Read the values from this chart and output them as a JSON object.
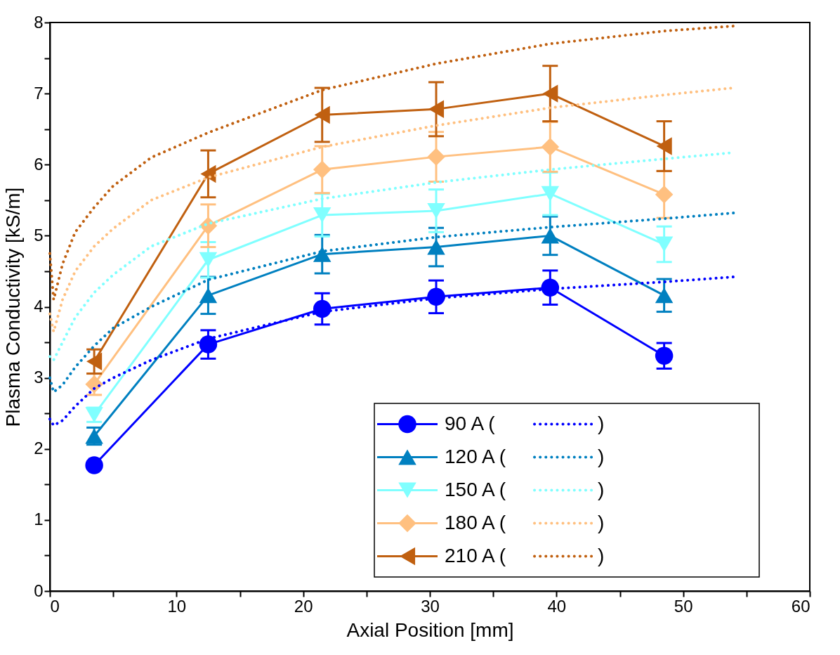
{
  "chart_data": {
    "type": "line",
    "xlabel": "Axial Position [mm]",
    "ylabel": "Plasma Conductivity [kS/m]",
    "xlim": [
      0,
      60
    ],
    "ylim": [
      0,
      8
    ],
    "xticks": [
      0,
      {
        "value": 5,
        "label": null
      },
      10,
      {
        "value": 15,
        "label": null
      },
      20,
      {
        "value": 25,
        "label": null
      },
      30,
      {
        "value": 35,
        "label": null
      },
      40,
      {
        "value": 45,
        "label": null
      },
      50,
      {
        "value": 55,
        "label": null
      },
      60
    ],
    "yticks": [
      0,
      {
        "value": 0.5,
        "label": null
      },
      1,
      {
        "value": 1.5,
        "label": null
      },
      2,
      {
        "value": 2.5,
        "label": null
      },
      3,
      {
        "value": 3.5,
        "label": null
      },
      4,
      {
        "value": 4.5,
        "label": null
      },
      5,
      {
        "value": 5.5,
        "label": null
      },
      6,
      {
        "value": 6.5,
        "label": null
      },
      7,
      {
        "value": 7.5,
        "label": null
      },
      8
    ],
    "grid": false,
    "legend": "bottom right",
    "series": [
      {
        "name": "90 A (",
        "color": "#0000ff",
        "marker": "circle",
        "line_style": "solid",
        "x": [
          3.5,
          12.5,
          21.5,
          30.5,
          39.5,
          48.5
        ],
        "values": [
          1.77,
          3.47,
          3.97,
          4.14,
          4.27,
          3.31
        ],
        "errors": [
          null,
          0.2,
          0.22,
          0.23,
          0.24,
          0.18
        ]
      },
      {
        "name": "120 A (",
        "color": "#0080c0",
        "marker": "triangle",
        "line_style": "solid",
        "x": [
          3.5,
          12.5,
          21.5,
          30.5,
          39.5,
          48.5
        ],
        "values": [
          2.18,
          4.16,
          4.74,
          4.84,
          5.0,
          4.16
        ],
        "errors": [
          0.12,
          0.26,
          0.27,
          0.27,
          0.27,
          0.23
        ]
      },
      {
        "name": "150 A (",
        "color": "#80ffff",
        "marker": "triangle-down",
        "line_style": "solid",
        "x": [
          3.5,
          12.5,
          21.5,
          30.5,
          39.5,
          48.5
        ],
        "values": [
          2.48,
          4.66,
          5.29,
          5.35,
          5.59,
          4.88
        ],
        "errors": [
          0.1,
          0.25,
          0.3,
          0.3,
          0.3,
          0.25
        ]
      },
      {
        "name": "180 A (",
        "color": "#ffc080",
        "marker": "diamond",
        "line_style": "solid",
        "x": [
          3.5,
          12.5,
          21.5,
          30.5,
          39.5,
          48.5
        ],
        "values": [
          2.91,
          5.14,
          5.93,
          6.11,
          6.25,
          5.58
        ],
        "errors": [
          0.15,
          0.3,
          0.33,
          0.35,
          0.35,
          0.33
        ]
      },
      {
        "name": "210 A (",
        "color": "#c06010",
        "marker": "triangle-left",
        "line_style": "solid",
        "x": [
          3.5,
          12.5,
          21.5,
          30.5,
          39.5,
          48.5
        ],
        "values": [
          3.23,
          5.87,
          6.7,
          6.78,
          7.0,
          6.26
        ],
        "errors": [
          0.17,
          0.33,
          0.38,
          0.38,
          0.39,
          0.35
        ]
      },
      {
        "name": ")",
        "color": "#0000ff",
        "marker": "none",
        "line_style": "dotted",
        "x": [
          0,
          0.3,
          1,
          2,
          3.5,
          5,
          8,
          12.5,
          21.5,
          30.5,
          39.5,
          48.5,
          54
        ],
        "values": [
          2.42,
          2.33,
          2.4,
          2.6,
          2.85,
          3.0,
          3.25,
          3.55,
          3.93,
          4.12,
          4.25,
          4.35,
          4.42
        ]
      },
      {
        "name": ")",
        "color": "#0080c0",
        "marker": "none",
        "line_style": "dotted",
        "x": [
          0,
          0.3,
          1,
          2,
          3.5,
          5,
          8,
          12.5,
          21.5,
          30.5,
          39.5,
          48.5,
          54
        ],
        "values": [
          3.0,
          2.8,
          2.9,
          3.15,
          3.45,
          3.7,
          4.0,
          4.38,
          4.78,
          4.98,
          5.12,
          5.24,
          5.32
        ]
      },
      {
        "name": ")",
        "color": "#80ffff",
        "marker": "none",
        "line_style": "dotted",
        "x": [
          0,
          0.3,
          1,
          2,
          3.5,
          5,
          8,
          12.5,
          21.5,
          30.5,
          39.5,
          48.5,
          54
        ],
        "values": [
          3.3,
          3.25,
          3.5,
          3.85,
          4.2,
          4.45,
          4.85,
          5.17,
          5.52,
          5.75,
          5.93,
          6.08,
          6.17
        ]
      },
      {
        "name": ")",
        "color": "#ffc080",
        "marker": "none",
        "line_style": "dotted",
        "x": [
          0,
          0.3,
          1,
          2,
          3.5,
          5,
          8,
          12.5,
          21.5,
          30.5,
          39.5,
          48.5,
          54
        ],
        "values": [
          3.9,
          3.65,
          4.1,
          4.5,
          4.85,
          5.1,
          5.5,
          5.82,
          6.25,
          6.55,
          6.8,
          6.98,
          7.08
        ]
      },
      {
        "name": ")",
        "color": "#c06010",
        "marker": "none",
        "line_style": "dotted",
        "x": [
          0,
          0.3,
          1,
          2,
          3.5,
          5,
          8,
          12.5,
          21.5,
          30.5,
          39.5,
          48.5,
          54
        ],
        "values": [
          4.75,
          4.1,
          4.6,
          5.05,
          5.4,
          5.7,
          6.1,
          6.45,
          7.05,
          7.42,
          7.7,
          7.88,
          7.95
        ]
      }
    ]
  }
}
